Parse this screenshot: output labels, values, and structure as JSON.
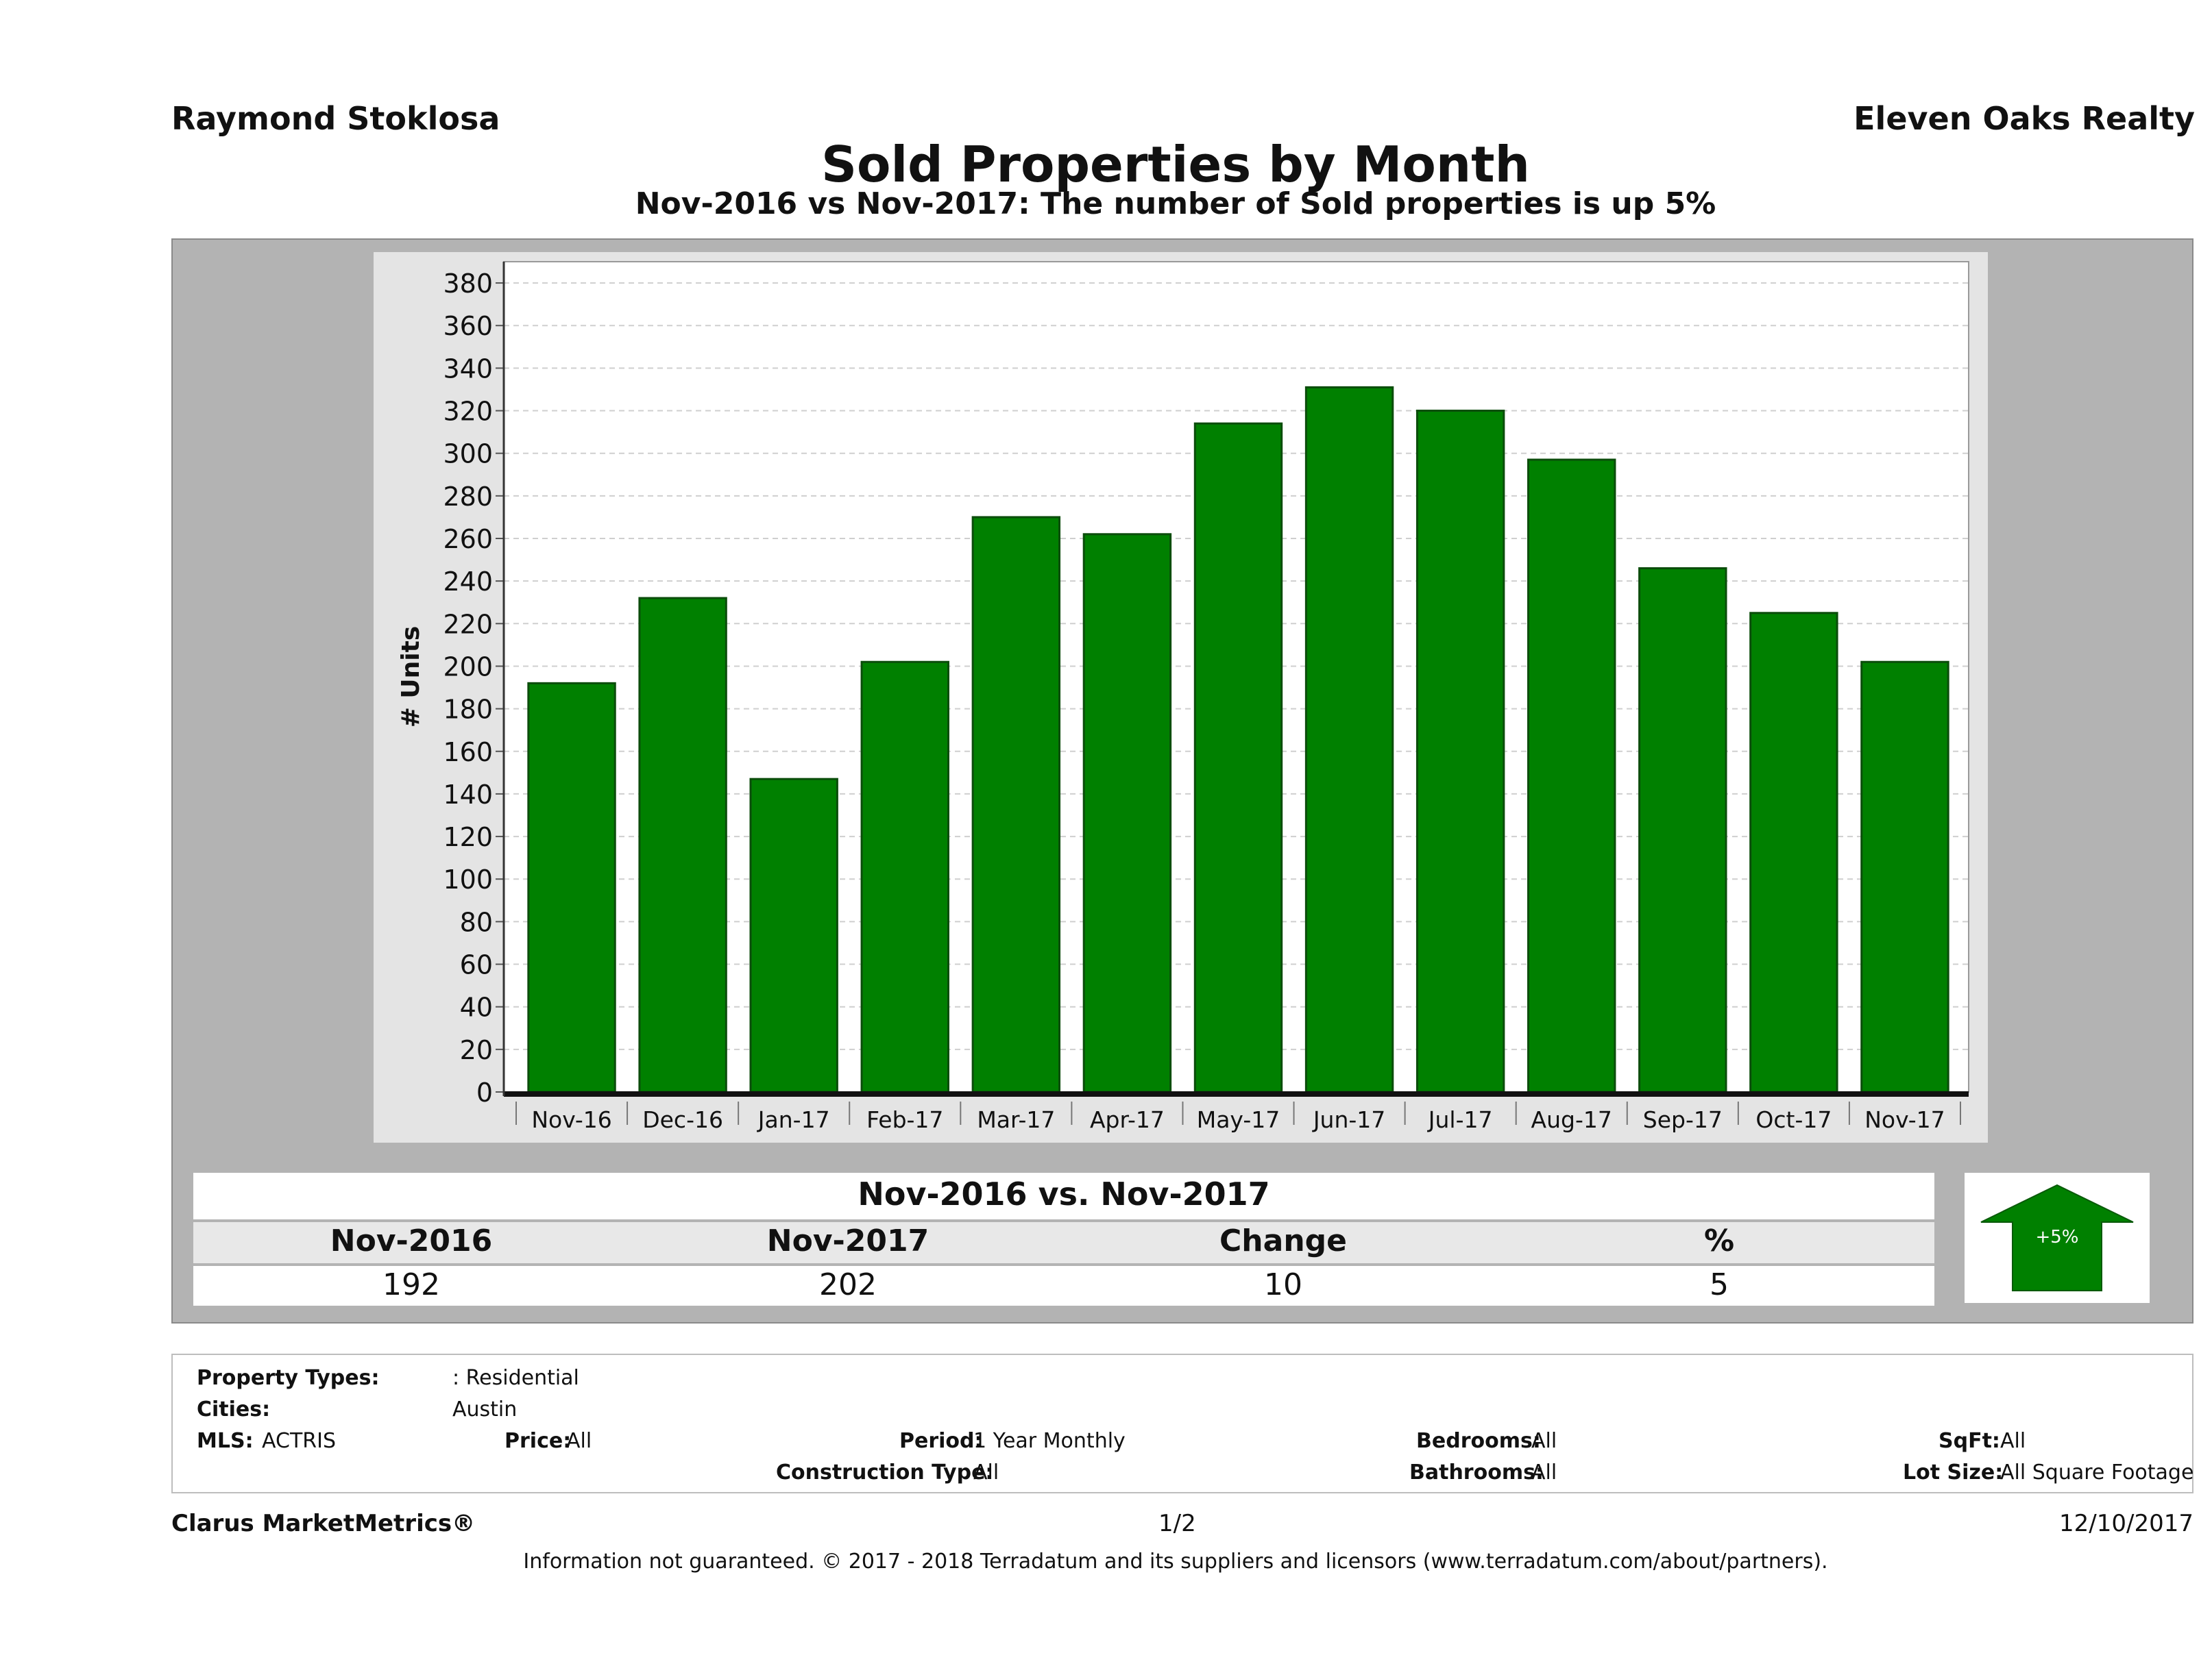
{
  "header": {
    "agent": "Raymond Stoklosa",
    "company": "Eleven Oaks Realty"
  },
  "chart_data": {
    "type": "bar",
    "title": "Sold Properties by Month",
    "subtitle": "Nov-2016 vs Nov-2017: The number of Sold  properties is up 5%",
    "ylabel": "# Units",
    "xlabel": "",
    "ylim": [
      0,
      390
    ],
    "yticks": [
      0,
      20,
      40,
      60,
      80,
      100,
      120,
      140,
      160,
      180,
      200,
      220,
      240,
      260,
      280,
      300,
      320,
      340,
      360,
      380
    ],
    "grid": true,
    "categories": [
      "Nov-16",
      "Dec-16",
      "Jan-17",
      "Feb-17",
      "Mar-17",
      "Apr-17",
      "May-17",
      "Jun-17",
      "Jul-17",
      "Aug-17",
      "Sep-17",
      "Oct-17",
      "Nov-17"
    ],
    "values": [
      192,
      232,
      147,
      202,
      270,
      262,
      314,
      331,
      320,
      297,
      246,
      225,
      202
    ],
    "bar_color": "#008000"
  },
  "summary": {
    "title": "Nov-2016 vs. Nov-2017",
    "headers": [
      "Nov-2016",
      "Nov-2017",
      "Change",
      "%"
    ],
    "values": [
      "192",
      "202",
      "10",
      "5"
    ],
    "badge": "+5%",
    "badge_color": "#008000",
    "badge_icon": "up-arrow-icon"
  },
  "filters": {
    "property_types_label": "Property Types:",
    "property_types_value": ": Residential",
    "cities_label": "Cities:",
    "cities_value": "Austin",
    "mls_label": "MLS:",
    "mls_value": "ACTRIS",
    "price_label": "Price:",
    "price_value": "All",
    "period_label": "Period:",
    "period_value": "1 Year Monthly",
    "construction_label": "Construction Type:",
    "construction_value": "All",
    "bedrooms_label": "Bedrooms:",
    "bedrooms_value": "All",
    "bathrooms_label": "Bathrooms:",
    "bathrooms_value": "All",
    "sqft_label": "SqFt:",
    "sqft_value": "All",
    "lot_label": "Lot Size:",
    "lot_value": "All Square Footage"
  },
  "footer": {
    "brand": "Clarus MarketMetrics®",
    "page": "1/2",
    "date": "12/10/2017",
    "disclaimer": "Information not guaranteed. © 2017 - 2018 Terradatum and its suppliers and licensors (www.terradatum.com/about/partners)."
  }
}
